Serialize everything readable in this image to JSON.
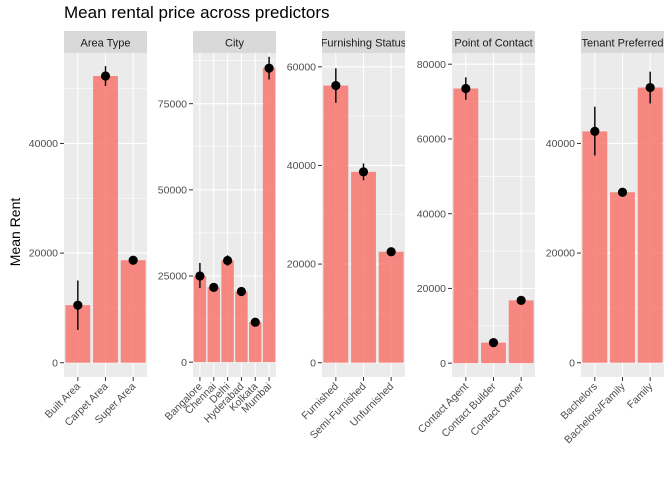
{
  "chart_data": {
    "type": "bar",
    "title": "Mean rental price across predictors",
    "ylabel": "Mean Rent",
    "bar_color": "#F8766D",
    "point_color": "#000000",
    "panel_bg": "#EBEBEB",
    "strip_bg": "#D9D9D9",
    "facets": [
      {
        "label": "Area Type",
        "ylim": [
          -2600,
          56500
        ],
        "yticks": [
          0,
          20000,
          40000
        ],
        "bars": [
          {
            "category": "Built Area",
            "value": 10500,
            "lo": 6000,
            "hi": 15000
          },
          {
            "category": "Carpet Area",
            "value": 52300,
            "lo": 50500,
            "hi": 54100
          },
          {
            "category": "Super Area",
            "value": 18700,
            "lo": 18300,
            "hi": 19100
          }
        ]
      },
      {
        "label": "City",
        "ylim": [
          -4300,
          89700
        ],
        "yticks": [
          0,
          25000,
          50000,
          75000
        ],
        "bars": [
          {
            "category": "Bangalore",
            "value": 25000,
            "lo": 21500,
            "hi": 28800
          },
          {
            "category": "Chennai",
            "value": 21700,
            "lo": 20700,
            "hi": 22700
          },
          {
            "category": "Delhi",
            "value": 29500,
            "lo": 28000,
            "hi": 31000
          },
          {
            "category": "Hyderabad",
            "value": 20500,
            "lo": 19900,
            "hi": 21100
          },
          {
            "category": "Kolkata",
            "value": 11600,
            "lo": 11100,
            "hi": 12100
          },
          {
            "category": "Mumbai",
            "value": 85300,
            "lo": 82000,
            "hi": 88600
          }
        ]
      },
      {
        "label": "Furnishing Status",
        "ylim": [
          -2900,
          62800
        ],
        "yticks": [
          0,
          20000,
          40000,
          60000
        ],
        "bars": [
          {
            "category": "Furnished",
            "value": 56200,
            "lo": 52700,
            "hi": 59700
          },
          {
            "category": "Semi-Furnished",
            "value": 38700,
            "lo": 37000,
            "hi": 40400
          },
          {
            "category": "Unfurnished",
            "value": 22500,
            "lo": 21900,
            "hi": 23100
          }
        ]
      },
      {
        "label": "Point of Contact",
        "ylim": [
          -3700,
          83000
        ],
        "yticks": [
          0,
          20000,
          40000,
          60000,
          80000
        ],
        "bars": [
          {
            "category": "Contact Agent",
            "value": 73500,
            "lo": 70500,
            "hi": 76500
          },
          {
            "category": "Contact Builder",
            "value": 5500,
            "lo": 5300,
            "hi": 5700
          },
          {
            "category": "Contact Owner",
            "value": 16800,
            "lo": 16400,
            "hi": 17200
          }
        ]
      },
      {
        "label": "Tenant Preferred",
        "ylim": [
          -2600,
          56500
        ],
        "yticks": [
          0,
          20000,
          40000
        ],
        "bars": [
          {
            "category": "Bachelors",
            "value": 42200,
            "lo": 37800,
            "hi": 46700
          },
          {
            "category": "Bachelors/Family",
            "value": 31100,
            "lo": 30400,
            "hi": 31800
          },
          {
            "category": "Family",
            "value": 50200,
            "lo": 47300,
            "hi": 53100
          }
        ]
      }
    ]
  }
}
